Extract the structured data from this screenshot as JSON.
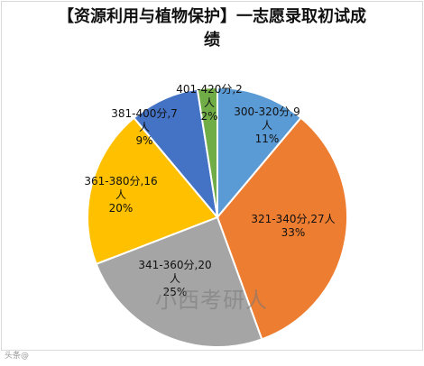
{
  "chart_data": {
    "type": "pie",
    "title_line1": "【资源利用与植物保护】一志愿录取初试成",
    "title_line2": "绩",
    "slices": [
      {
        "category": "300-320分",
        "value": 9,
        "percent": "11%",
        "color": "#5b9bd5"
      },
      {
        "category": "321-340分",
        "value": 27,
        "percent": "33%",
        "color": "#ed7d31"
      },
      {
        "category": "341-360分",
        "value": 20,
        "percent": "25%",
        "color": "#a5a5a5"
      },
      {
        "category": "361-380分",
        "value": 16,
        "percent": "20%",
        "color": "#ffc000"
      },
      {
        "category": "381-400分",
        "value": 7,
        "percent": "9%",
        "color": "#4472c4"
      },
      {
        "category": "401-420分",
        "value": 2,
        "percent": "2%",
        "color": "#70ad47"
      }
    ],
    "label_lines": [
      [
        "300-320分,9",
        "人",
        "11%"
      ],
      [
        "321-340分,27人",
        "33%"
      ],
      [
        "341-360分,20",
        "人",
        "25%"
      ],
      [
        "361-380分,16",
        "人",
        "20%"
      ],
      [
        "381-400分,7",
        "人",
        "9%"
      ],
      [
        "401-420分,2",
        "人",
        "2%"
      ]
    ]
  },
  "watermark": "小西考研人",
  "corner_mark": "头条@"
}
